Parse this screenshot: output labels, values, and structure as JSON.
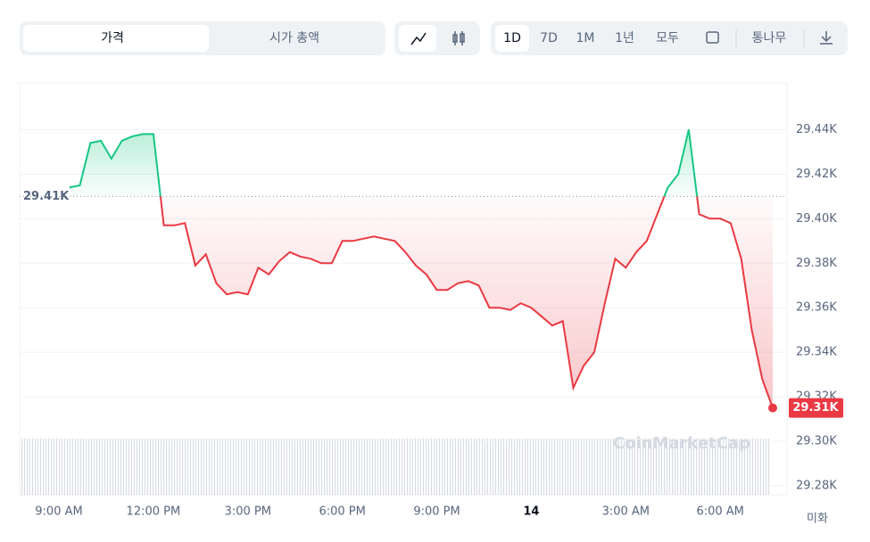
{
  "controls": {
    "tabs": [
      "가격",
      "시가 총액"
    ],
    "ranges": [
      "1D",
      "7D",
      "1M",
      "1년",
      "모두"
    ],
    "log": "통나무"
  },
  "chart_data": {
    "type": "line",
    "currency": "미화",
    "watermark": "CoinMarketCap",
    "last_label": "29.31K",
    "baseline": {
      "value": 29410,
      "label": "29.41K"
    },
    "categories": [
      "9:00 AM",
      null,
      null,
      null,
      null,
      null,
      null,
      null,
      null,
      "12:00 PM",
      null,
      null,
      null,
      null,
      null,
      null,
      null,
      null,
      "3:00 PM",
      null,
      null,
      null,
      null,
      null,
      null,
      null,
      null,
      "6:00 PM",
      null,
      null,
      null,
      null,
      null,
      null,
      null,
      null,
      "9:00 PM",
      null,
      null,
      null,
      null,
      null,
      null,
      null,
      null,
      "14",
      null,
      null,
      null,
      null,
      null,
      null,
      null,
      null,
      "3:00 AM",
      null,
      null,
      null,
      null,
      null,
      null,
      null,
      null,
      "6:00 AM",
      null,
      null,
      null,
      null,
      null
    ],
    "values": [
      null,
      29414,
      29415,
      29434,
      29435,
      29427,
      29435,
      29437,
      29438,
      29438,
      29397,
      29397,
      29398,
      29379,
      29384,
      29371,
      29366,
      29367,
      29366,
      29378,
      29375,
      29381,
      29385,
      29383,
      29382,
      29380,
      29380,
      29390,
      29390,
      29391,
      29392,
      29391,
      29390,
      29385,
      29379,
      29375,
      29368,
      29368,
      29371,
      29372,
      29370,
      29360,
      29360,
      29359,
      29362,
      29360,
      29356,
      29352,
      29354,
      29324,
      29334,
      29340,
      29362,
      29382,
      29378,
      29385,
      29390,
      29402,
      29414,
      29420,
      29440,
      29402,
      29400,
      29400,
      29398,
      29382,
      29350,
      29328,
      29315
    ],
    "up_color": "#16c784",
    "down_color": "#ea3943",
    "ylim": [
      29276,
      29461
    ],
    "yticks": [
      {
        "value": 29280,
        "label": "29.28K"
      },
      {
        "value": 29300,
        "label": "29.30K"
      },
      {
        "value": 29320,
        "label": "29.32K"
      },
      {
        "value": 29340,
        "label": "29.34K"
      },
      {
        "value": 29360,
        "label": "29.36K"
      },
      {
        "value": 29380,
        "label": "29.38K"
      },
      {
        "value": 29400,
        "label": "29.40K"
      },
      {
        "value": 29420,
        "label": "29.42K"
      },
      {
        "value": 29440,
        "label": "29.44K"
      }
    ],
    "grid": true
  }
}
